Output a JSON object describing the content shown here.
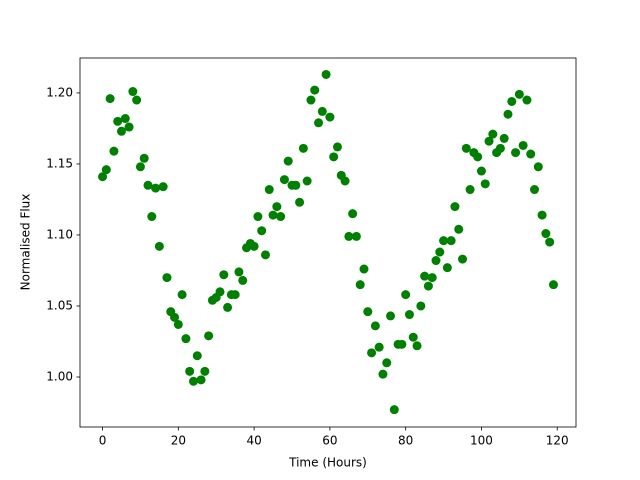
{
  "chart_data": {
    "type": "scatter",
    "xlabel": "Time (Hours)",
    "ylabel": "Normalised Flux",
    "series": [
      {
        "color": "#008000",
        "x": [
          0,
          1,
          2,
          3,
          4,
          5,
          6,
          7,
          8,
          9,
          10,
          11,
          12,
          13,
          14,
          15,
          16,
          17,
          18,
          19,
          20,
          21,
          22,
          23,
          24,
          25,
          26,
          27,
          28,
          29,
          30,
          31,
          32,
          33,
          34,
          35,
          36,
          37,
          38,
          39,
          40,
          41,
          42,
          43,
          44,
          45,
          46,
          47,
          48,
          49,
          50,
          51,
          52,
          53,
          54,
          55,
          56,
          57,
          58,
          59,
          60,
          61,
          62,
          63,
          64,
          65,
          66,
          67,
          68,
          69,
          70,
          71,
          72,
          73,
          74,
          75,
          76,
          77,
          78,
          79,
          80,
          81,
          82,
          83,
          84,
          85,
          86,
          87,
          88,
          89,
          90,
          91,
          92,
          93,
          94,
          95,
          96,
          97,
          98,
          99,
          100,
          101,
          102,
          103,
          104,
          105,
          106,
          107,
          108,
          109,
          110,
          111,
          112,
          113,
          114,
          115,
          116,
          117,
          118,
          119
        ],
        "values": [
          1.141,
          1.146,
          1.196,
          1.159,
          1.18,
          1.173,
          1.182,
          1.176,
          1.201,
          1.195,
          1.148,
          1.154,
          1.135,
          1.113,
          1.133,
          1.092,
          1.134,
          1.07,
          1.046,
          1.042,
          1.037,
          1.058,
          1.027,
          1.004,
          0.997,
          1.015,
          0.998,
          1.004,
          1.029,
          1.054,
          1.056,
          1.06,
          1.072,
          1.049,
          1.058,
          1.058,
          1.074,
          1.068,
          1.091,
          1.094,
          1.092,
          1.113,
          1.103,
          1.086,
          1.132,
          1.114,
          1.12,
          1.113,
          1.139,
          1.152,
          1.135,
          1.135,
          1.123,
          1.161,
          1.138,
          1.195,
          1.202,
          1.179,
          1.187,
          1.213,
          1.183,
          1.155,
          1.162,
          1.142,
          1.138,
          1.099,
          1.115,
          1.099,
          1.065,
          1.076,
          1.046,
          1.017,
          1.036,
          1.021,
          1.002,
          1.01,
          1.043,
          0.977,
          1.023,
          1.023,
          1.058,
          1.044,
          1.028,
          1.022,
          1.05,
          1.071,
          1.064,
          1.07,
          1.082,
          1.088,
          1.096,
          1.077,
          1.096,
          1.12,
          1.104,
          1.083,
          1.161,
          1.132,
          1.158,
          1.155,
          1.145,
          1.136,
          1.166,
          1.171,
          1.158,
          1.161,
          1.168,
          1.185,
          1.194,
          1.158,
          1.199,
          1.163,
          1.195,
          1.157,
          1.132,
          1.148,
          1.114,
          1.101,
          1.095,
          1.065
        ]
      }
    ],
    "xlim": [
      -5.95,
      124.95
    ],
    "xticks": [
      0,
      20,
      40,
      60,
      80,
      100,
      120
    ],
    "ylim": [
      0.9648,
      1.2246
    ],
    "yticks": [
      {
        "value": 1.0,
        "label": "1.00"
      },
      {
        "value": 1.05,
        "label": "1.05"
      },
      {
        "value": 1.1,
        "label": "1.10"
      },
      {
        "value": 1.15,
        "label": "1.15"
      },
      {
        "value": 1.2,
        "label": "1.20"
      }
    ],
    "grid": false
  }
}
